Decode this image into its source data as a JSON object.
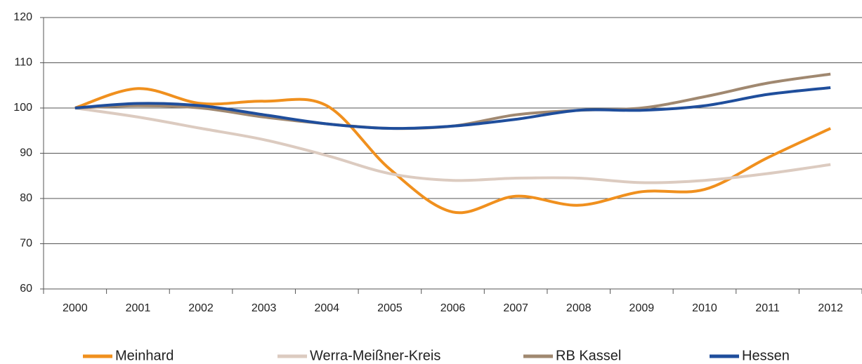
{
  "chart_data": {
    "type": "line",
    "categories": [
      "2000",
      "2001",
      "2002",
      "2003",
      "2004",
      "2005",
      "2006",
      "2007",
      "2008",
      "2009",
      "2010",
      "2011",
      "2012"
    ],
    "series": [
      {
        "name": "Meinhard",
        "color": "#f0901e",
        "values": [
          100,
          104.3,
          101,
          101.5,
          100.5,
          86.5,
          77,
          80.5,
          78.5,
          81.5,
          82,
          89,
          95.5
        ]
      },
      {
        "name": "Werra-Meißner-Kreis",
        "color": "#dccbc0",
        "values": [
          100,
          98,
          95.5,
          93,
          89.5,
          85.5,
          84,
          84.5,
          84.5,
          83.5,
          84,
          85.5,
          87.5
        ]
      },
      {
        "name": "RB Kassel",
        "color": "#a08870",
        "values": [
          100,
          100.5,
          100,
          98,
          96.5,
          95.5,
          96,
          98.5,
          99.5,
          100,
          102.5,
          105.5,
          107.5
        ]
      },
      {
        "name": "Hessen",
        "color": "#1f4e9c",
        "values": [
          100,
          101,
          100.5,
          98.5,
          96.5,
          95.5,
          96,
          97.5,
          99.5,
          99.5,
          100.5,
          103,
          104.5
        ]
      }
    ],
    "ylim": [
      60,
      120
    ],
    "yticks": [
      60,
      70,
      80,
      90,
      100,
      110,
      120
    ],
    "grid": true
  }
}
